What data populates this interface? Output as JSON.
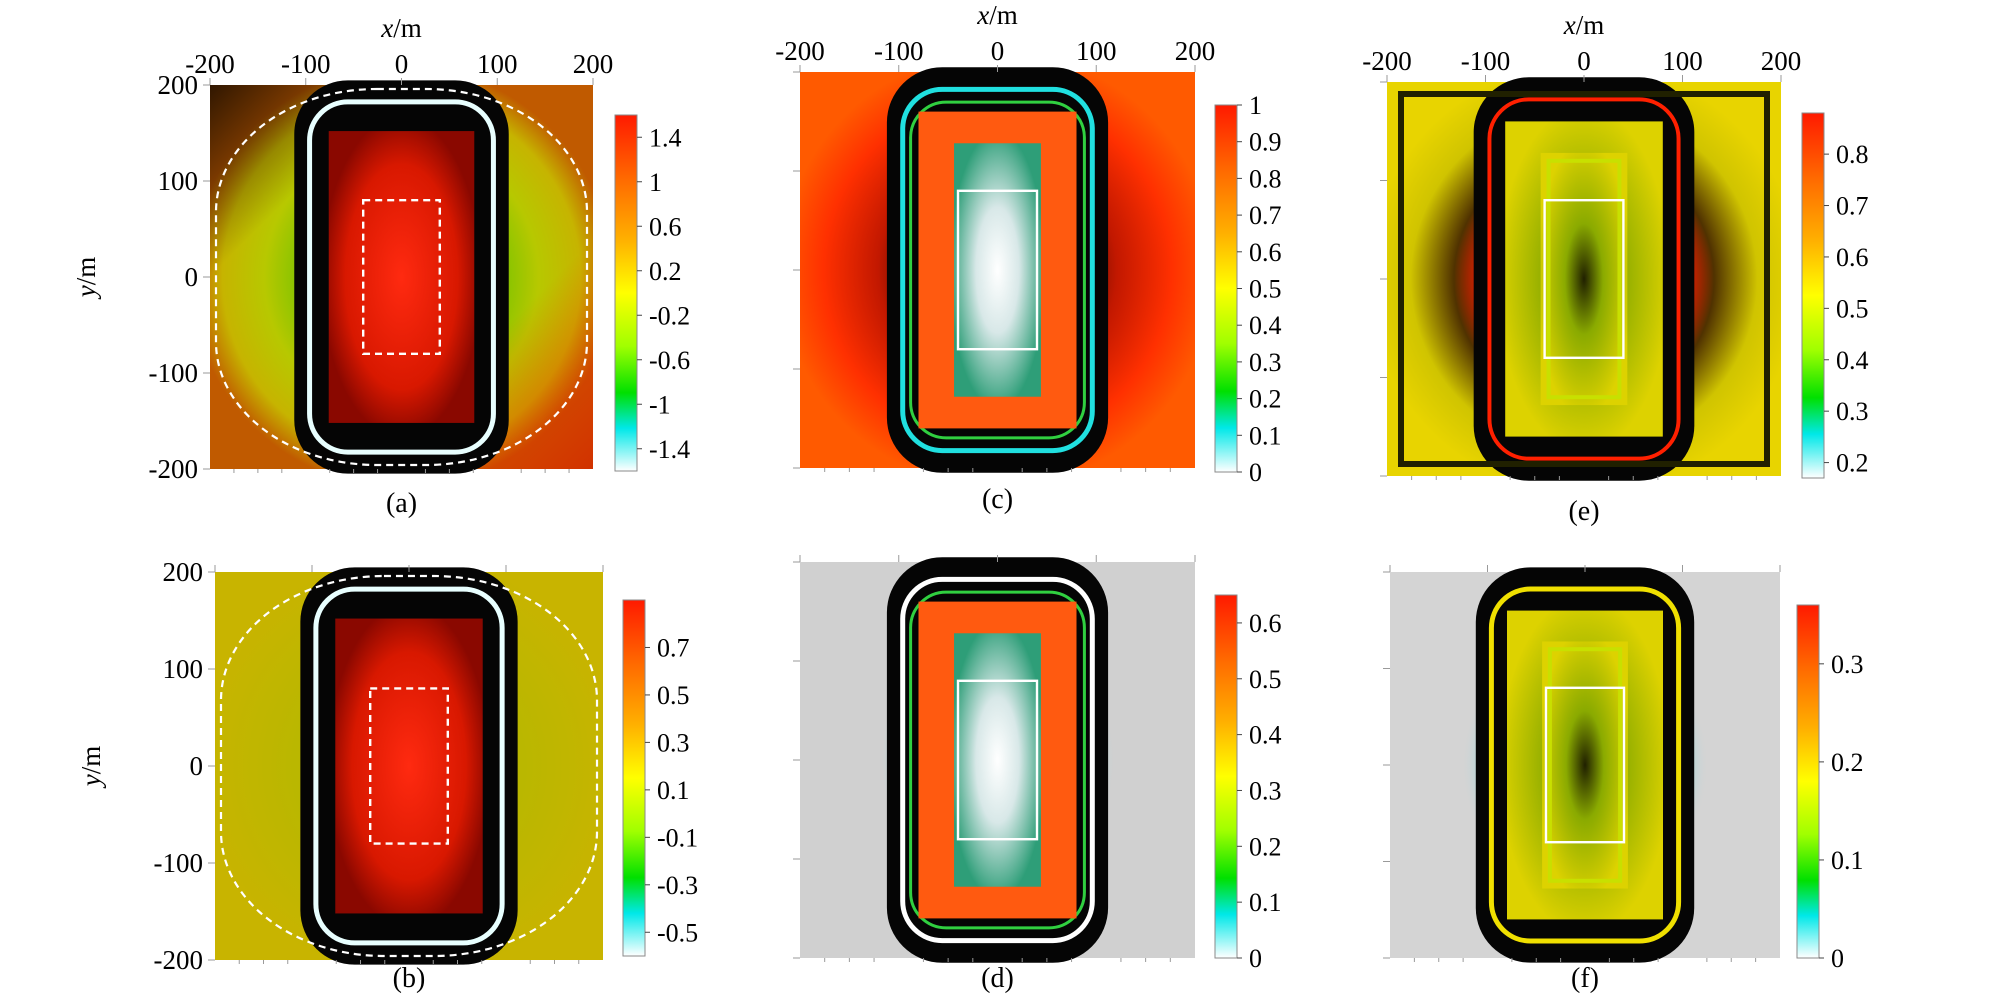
{
  "figure": {
    "x_axis_label": "x/m",
    "y_axis_label": "y/m"
  },
  "chart_data": [
    {
      "type": "heatmap",
      "panel": "(a)",
      "title": "",
      "xlabel": "x/m",
      "ylabel": "y/m",
      "xlim": [
        -200,
        200
      ],
      "ylim": [
        -200,
        200
      ],
      "x_ticks": [
        -200,
        -100,
        0,
        100,
        200
      ],
      "y_ticks": [
        200,
        100,
        0,
        -100,
        -200
      ],
      "colorbar": {
        "min": -1.6,
        "max": 1.6,
        "ticks": [
          1.4,
          1,
          0.6,
          0.2,
          -0.2,
          -0.6,
          -1,
          -1.4
        ],
        "palette": "rainbow"
      },
      "background": "yellow-green gradient (dark top-left corner, orange-red lower-left)",
      "central_value": "high (red)",
      "ring_value": "low (black/white band)",
      "overlays": [
        {
          "shape": "rectangle",
          "style": "dashed",
          "color": "#ffffff",
          "x": [
            -40,
            40
          ],
          "y": [
            -80,
            80
          ]
        },
        {
          "shape": "rounded-square",
          "style": "dashed",
          "color": "#ffffff",
          "x": [
            -200,
            200
          ],
          "y": [
            -200,
            200
          ]
        }
      ]
    },
    {
      "type": "heatmap",
      "panel": "(b)",
      "title": "",
      "xlabel": "",
      "ylabel": "y/m",
      "xlim": [
        -200,
        200
      ],
      "ylim": [
        -200,
        200
      ],
      "x_ticks": [],
      "y_ticks": [
        200,
        100,
        0,
        -100,
        -200
      ],
      "colorbar": {
        "min": -0.6,
        "max": 0.9,
        "ticks": [
          0.7,
          0.5,
          0.3,
          0.1,
          -0.1,
          -0.3,
          -0.5
        ],
        "palette": "rainbow"
      },
      "background": "uniform olive-yellow",
      "central_value": "high (red)",
      "ring_value": "low (black/white band)",
      "overlays": [
        {
          "shape": "rectangle",
          "style": "dashed",
          "color": "#ffffff",
          "x": [
            -40,
            40
          ],
          "y": [
            -80,
            80
          ]
        },
        {
          "shape": "rounded-square",
          "style": "dashed",
          "color": "#ffffff",
          "x": [
            -200,
            200
          ],
          "y": [
            -200,
            200
          ]
        }
      ]
    },
    {
      "type": "heatmap",
      "panel": "(c)",
      "title": "",
      "xlabel": "x/m",
      "ylabel": "",
      "xlim": [
        -200,
        200
      ],
      "ylim": [
        -200,
        200
      ],
      "x_ticks": [
        -200,
        -100,
        0,
        100,
        200
      ],
      "y_ticks": [],
      "colorbar": {
        "min": 0,
        "max": 1,
        "ticks": [
          1,
          0.9,
          0.8,
          0.7,
          0.6,
          0.5,
          0.4,
          0.3,
          0.2,
          0.1,
          0
        ],
        "palette": "rainbow"
      },
      "background": "red-orange with dark ring",
      "central_value": "low (white/cyan) with green edges",
      "ring_value": "near 0 (black)",
      "overlays": [
        {
          "shape": "rectangle",
          "style": "solid",
          "color": "#ffffff",
          "x": [
            -40,
            40
          ],
          "y": [
            -80,
            80
          ]
        }
      ]
    },
    {
      "type": "heatmap",
      "panel": "(d)",
      "title": "",
      "xlabel": "",
      "ylabel": "",
      "xlim": [
        -200,
        200
      ],
      "ylim": [
        -200,
        200
      ],
      "x_ticks": [],
      "y_ticks": [],
      "colorbar": {
        "min": 0,
        "max": 0.65,
        "ticks": [
          0.6,
          0.5,
          0.4,
          0.3,
          0.2,
          0.1,
          0
        ],
        "palette": "rainbow"
      },
      "background": "light grey",
      "central_value": "mixed (white core, red/orange edges)",
      "ring_value": "cyan halo around black ring",
      "overlays": [
        {
          "shape": "rectangle",
          "style": "solid",
          "color": "#ffffff",
          "x": [
            -40,
            40
          ],
          "y": [
            -80,
            80
          ]
        }
      ]
    },
    {
      "type": "heatmap",
      "panel": "(e)",
      "title": "",
      "xlabel": "x/m",
      "ylabel": "",
      "xlim": [
        -200,
        200
      ],
      "ylim": [
        -200,
        200
      ],
      "x_ticks": [
        -200,
        -100,
        0,
        100,
        200
      ],
      "y_ticks": [],
      "colorbar": {
        "min": 0.17,
        "max": 0.88,
        "ticks": [
          0.8,
          0.7,
          0.6,
          0.5,
          0.4,
          0.3,
          0.2
        ],
        "palette": "rainbow"
      },
      "background": "yellow-olive with dark square frame",
      "central_value": "nested green/yellow rectangles",
      "ring_value": "red-orange band",
      "overlays": [
        {
          "shape": "rectangle",
          "style": "solid",
          "color": "#ffffff",
          "x": [
            -40,
            40
          ],
          "y": [
            -80,
            80
          ]
        }
      ]
    },
    {
      "type": "heatmap",
      "panel": "(f)",
      "title": "",
      "xlabel": "",
      "ylabel": "",
      "xlim": [
        -200,
        200
      ],
      "ylim": [
        -200,
        200
      ],
      "x_ticks": [],
      "y_ticks": [],
      "colorbar": {
        "min": 0,
        "max": 0.36,
        "ticks": [
          0.3,
          0.2,
          0.1,
          0
        ],
        "palette": "rainbow"
      },
      "background": "light grey",
      "central_value": "nested yellow/green rectangles",
      "ring_value": "cyan halo, green/yellow band",
      "overlays": [
        {
          "shape": "rectangle",
          "style": "solid",
          "color": "#ffffff",
          "x": [
            -40,
            40
          ],
          "y": [
            -80,
            80
          ]
        }
      ]
    }
  ]
}
